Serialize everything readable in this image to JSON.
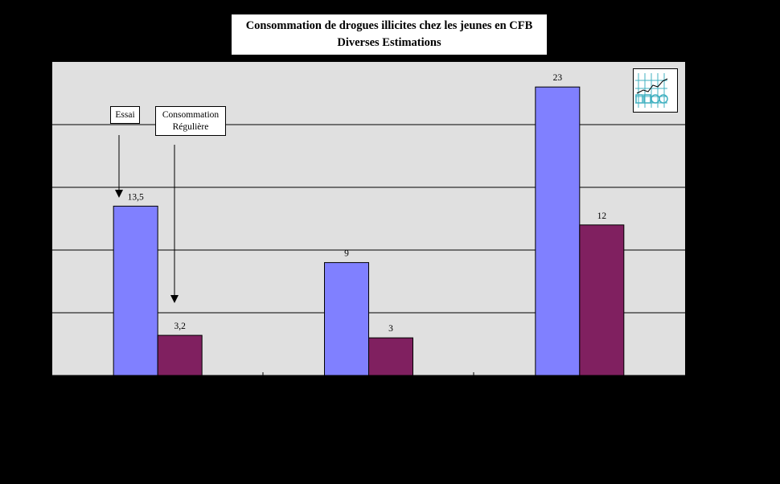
{
  "chart_data": {
    "type": "bar",
    "title": "Consommation de drogues illicites chez les jeunes  en CFB",
    "subtitle": "Diverses Estimations",
    "categories": [
      "",
      "",
      ""
    ],
    "series": [
      {
        "name": "Essai",
        "values": [
          13.5,
          9,
          23
        ],
        "color": "#8080ff"
      },
      {
        "name": "Consommation Régulière",
        "values": [
          3.2,
          3,
          12
        ],
        "color": "#802060"
      }
    ],
    "data_labels": [
      [
        "13,5",
        "9",
        "23"
      ],
      [
        "3,2",
        "3",
        "12"
      ]
    ],
    "ylim": [
      0,
      25
    ],
    "grid": true,
    "legend": "annotations-with-arrows"
  },
  "annotations": {
    "essai": "Essai",
    "consommation_line1": "Consommation",
    "consommation_line2": "Régulière"
  },
  "colors": {
    "background": "#000000",
    "plot_area": "#e0e0e0"
  },
  "logo": {
    "icon": "grid-chart-logo-icon"
  }
}
